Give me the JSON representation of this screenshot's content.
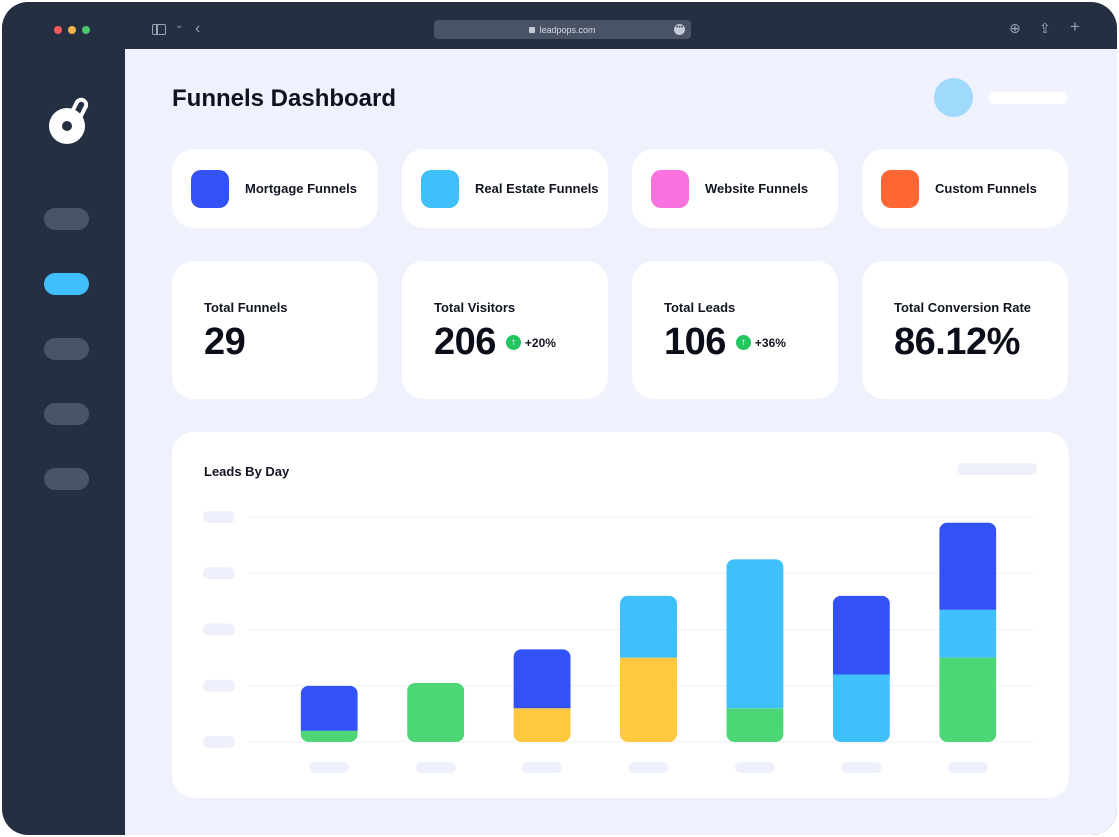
{
  "browser": {
    "url": "leadpops.com"
  },
  "page": {
    "title": "Funnels Dashboard"
  },
  "funnel_types": [
    {
      "label": "Mortgage Funnels",
      "color": "#3352f5"
    },
    {
      "label": "Real Estate Funnels",
      "color": "#40c0fb"
    },
    {
      "label": "Website Funnels",
      "color": "#f972e0"
    },
    {
      "label": "Custom Funnels",
      "color": "#fe6634"
    }
  ],
  "stats": [
    {
      "label": "Total Funnels",
      "value": "29",
      "delta": ""
    },
    {
      "label": "Total Visitors",
      "value": "206",
      "delta": "+20%"
    },
    {
      "label": "Total Leads",
      "value": "106",
      "delta": "+36%"
    },
    {
      "label": "Total Conversion Rate",
      "value": "86.12%",
      "delta": ""
    }
  ],
  "colors": {
    "accent": "#3fc0fd",
    "sidebar": "#252f42",
    "positive": "#22c55e",
    "bar_blue": "#3352f5",
    "bar_cyan": "#40c0fb",
    "bar_yellow": "#fec93e",
    "bar_green": "#4dd676"
  },
  "chart_data": {
    "type": "bar",
    "stacked": true,
    "title": "Leads By Day",
    "xlabel": "",
    "ylabel": "",
    "ylim": [
      0,
      4
    ],
    "grid": true,
    "legend": "none",
    "categories": [
      "",
      "",
      "",
      "",
      "",
      "",
      ""
    ],
    "series": [
      {
        "color": "#4dd676",
        "values": [
          0.2,
          1.05,
          0,
          0,
          0.6,
          0,
          1.5
        ]
      },
      {
        "color": "#fec93e",
        "values": [
          0,
          0,
          0.6,
          1.5,
          0,
          0,
          0
        ]
      },
      {
        "color": "#40c0fb",
        "values": [
          0,
          0,
          0,
          1.1,
          2.65,
          1.2,
          0.85
        ]
      },
      {
        "color": "#3352f5",
        "values": [
          0.8,
          0,
          1.05,
          0,
          0,
          1.4,
          1.55
        ]
      }
    ]
  }
}
